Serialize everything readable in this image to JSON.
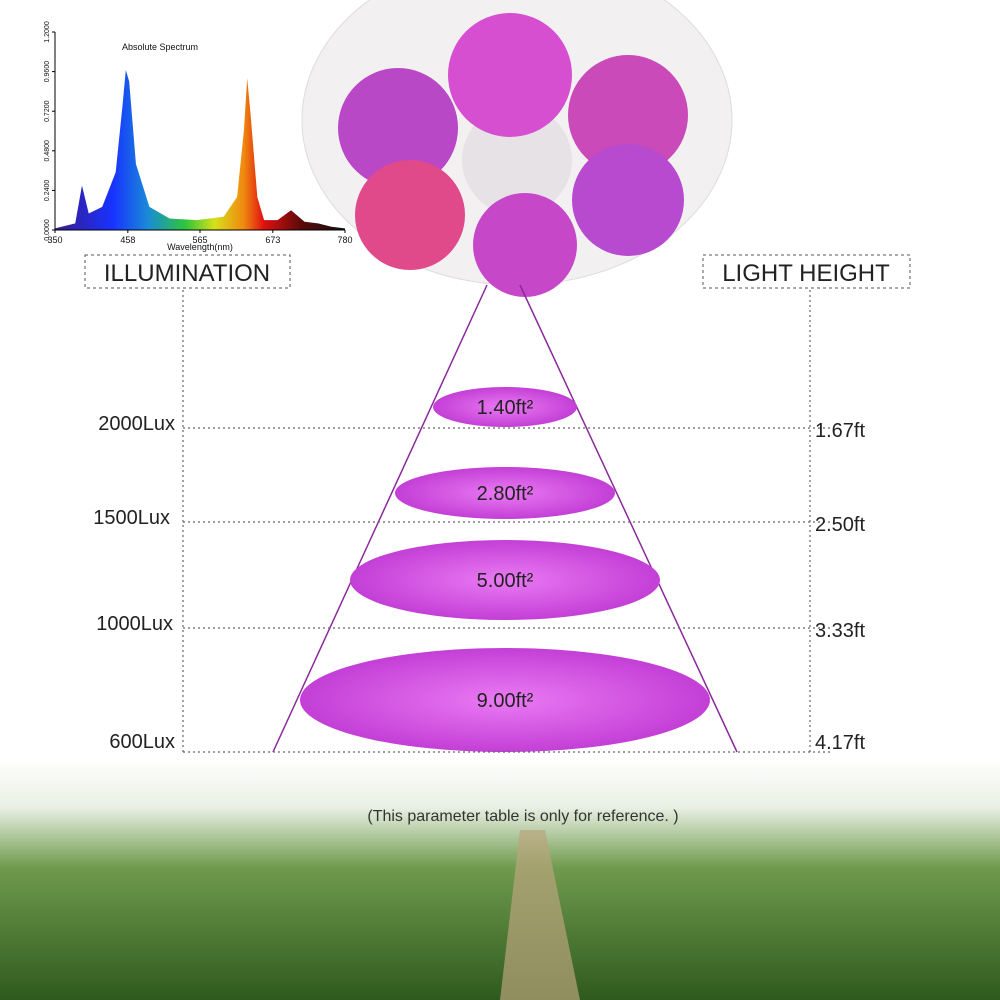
{
  "spectrum": {
    "title": "Absolute Spectrum",
    "x_label": "Wavelength(nm)",
    "x": [
      350,
      380,
      390,
      400,
      420,
      440,
      450,
      455,
      460,
      470,
      490,
      520,
      560,
      600,
      620,
      630,
      635,
      640,
      650,
      660,
      680,
      700,
      720,
      740,
      760,
      780
    ],
    "values": [
      0.01,
      0.04,
      0.27,
      0.1,
      0.14,
      0.35,
      0.75,
      0.97,
      0.9,
      0.4,
      0.14,
      0.07,
      0.06,
      0.08,
      0.2,
      0.6,
      0.92,
      0.7,
      0.2,
      0.06,
      0.06,
      0.12,
      0.05,
      0.04,
      0.02,
      0.01
    ],
    "xlim": [
      350,
      780
    ],
    "xticks": [
      350,
      458,
      565,
      673,
      780
    ],
    "ylim": [
      0,
      1.2
    ],
    "yticks": [
      {
        "value": 0,
        "label": "0.0000"
      },
      {
        "value": 0.24,
        "label": "0.2400"
      },
      {
        "value": 0.48,
        "label": "0.4800"
      },
      {
        "value": 0.72,
        "label": "0.7200"
      },
      {
        "value": 0.96,
        "label": "0.9600"
      },
      {
        "value": 1.2,
        "label": "1.2000"
      }
    ]
  },
  "left_header": "ILLUMINATION",
  "right_header": "LIGHT HEIGHT",
  "levels": [
    {
      "lux": "2000Lux",
      "height": "1.67ft",
      "area": "1.40ft²"
    },
    {
      "lux": "1500Lux",
      "height": "2.50ft",
      "area": "2.80ft²"
    },
    {
      "lux": "1000Lux",
      "height": "3.33ft",
      "area": "5.00ft²"
    },
    {
      "lux": "600Lux",
      "height": "4.17ft",
      "area": "9.00ft²"
    }
  ],
  "note": "(This parameter table is only for reference. )"
}
